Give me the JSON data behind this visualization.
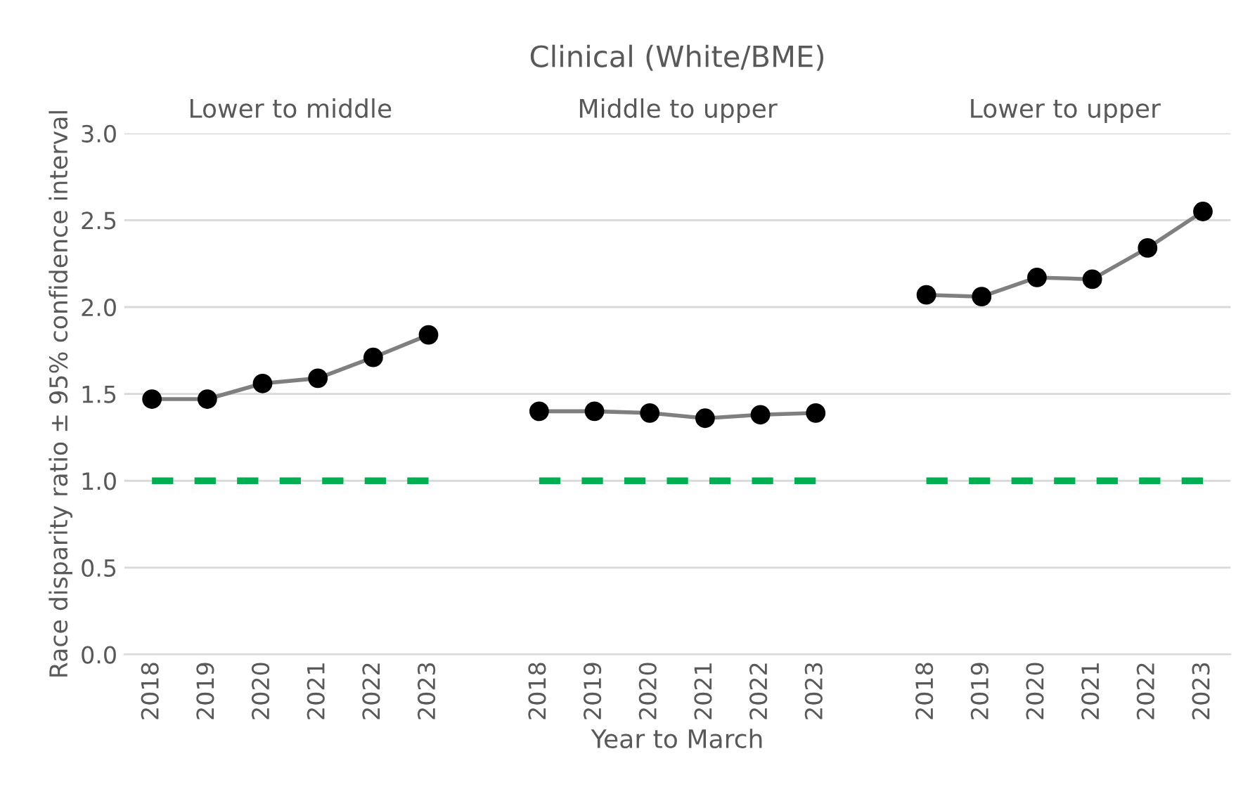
{
  "chart_data": {
    "type": "line",
    "title": "Clinical (White/BME)",
    "xlabel": "Year to March",
    "ylabel": "Race disparity ratio ± 95% confidence interval",
    "categories": [
      "2018",
      "2019",
      "2020",
      "2021",
      "2022",
      "2023",
      null,
      "2018",
      "2019",
      "2020",
      "2021",
      "2022",
      "2023",
      null,
      "2018",
      "2019",
      "2020",
      "2021",
      "2022",
      "2023"
    ],
    "series": [
      {
        "color": "#000000",
        "marker": "circle",
        "line_style": "solid",
        "values": [
          1.47,
          1.47,
          1.56,
          1.59,
          1.71,
          1.84,
          null,
          1.4,
          1.4,
          1.39,
          1.36,
          1.38,
          1.39,
          null,
          2.07,
          2.06,
          2.17,
          2.16,
          2.34,
          2.55
        ],
        "errors": [
          0.02,
          0.02,
          0.02,
          0.02,
          0.02,
          0.02,
          null,
          0.03,
          0.03,
          0.03,
          0.03,
          0.03,
          0.03,
          null,
          0.04,
          0.04,
          0.04,
          0.04,
          0.04,
          0.04
        ]
      },
      {
        "color": "#00b050",
        "marker": "none",
        "line_style": "dashed",
        "values": [
          1.0,
          1.0,
          1.0,
          1.0,
          1.0,
          1.0,
          null,
          1.0,
          1.0,
          1.0,
          1.0,
          1.0,
          1.0,
          null,
          1.0,
          1.0,
          1.0,
          1.0,
          1.0,
          1.0
        ]
      }
    ],
    "annotations": [
      "Lower to middle",
      "Middle to upper",
      "Lower to upper"
    ],
    "ylim": [
      0,
      3
    ],
    "yticks": [
      {
        "value": 0,
        "label": "0.0"
      },
      {
        "value": 0.5,
        "label": "0.5"
      },
      {
        "value": 1,
        "label": "1.0"
      },
      {
        "value": 1.5,
        "label": "1.5"
      },
      {
        "value": 2,
        "label": "2.0"
      },
      {
        "value": 2.5,
        "label": "2.5"
      },
      {
        "value": 3,
        "label": "3.0"
      }
    ],
    "grid": "y",
    "legend": false
  }
}
